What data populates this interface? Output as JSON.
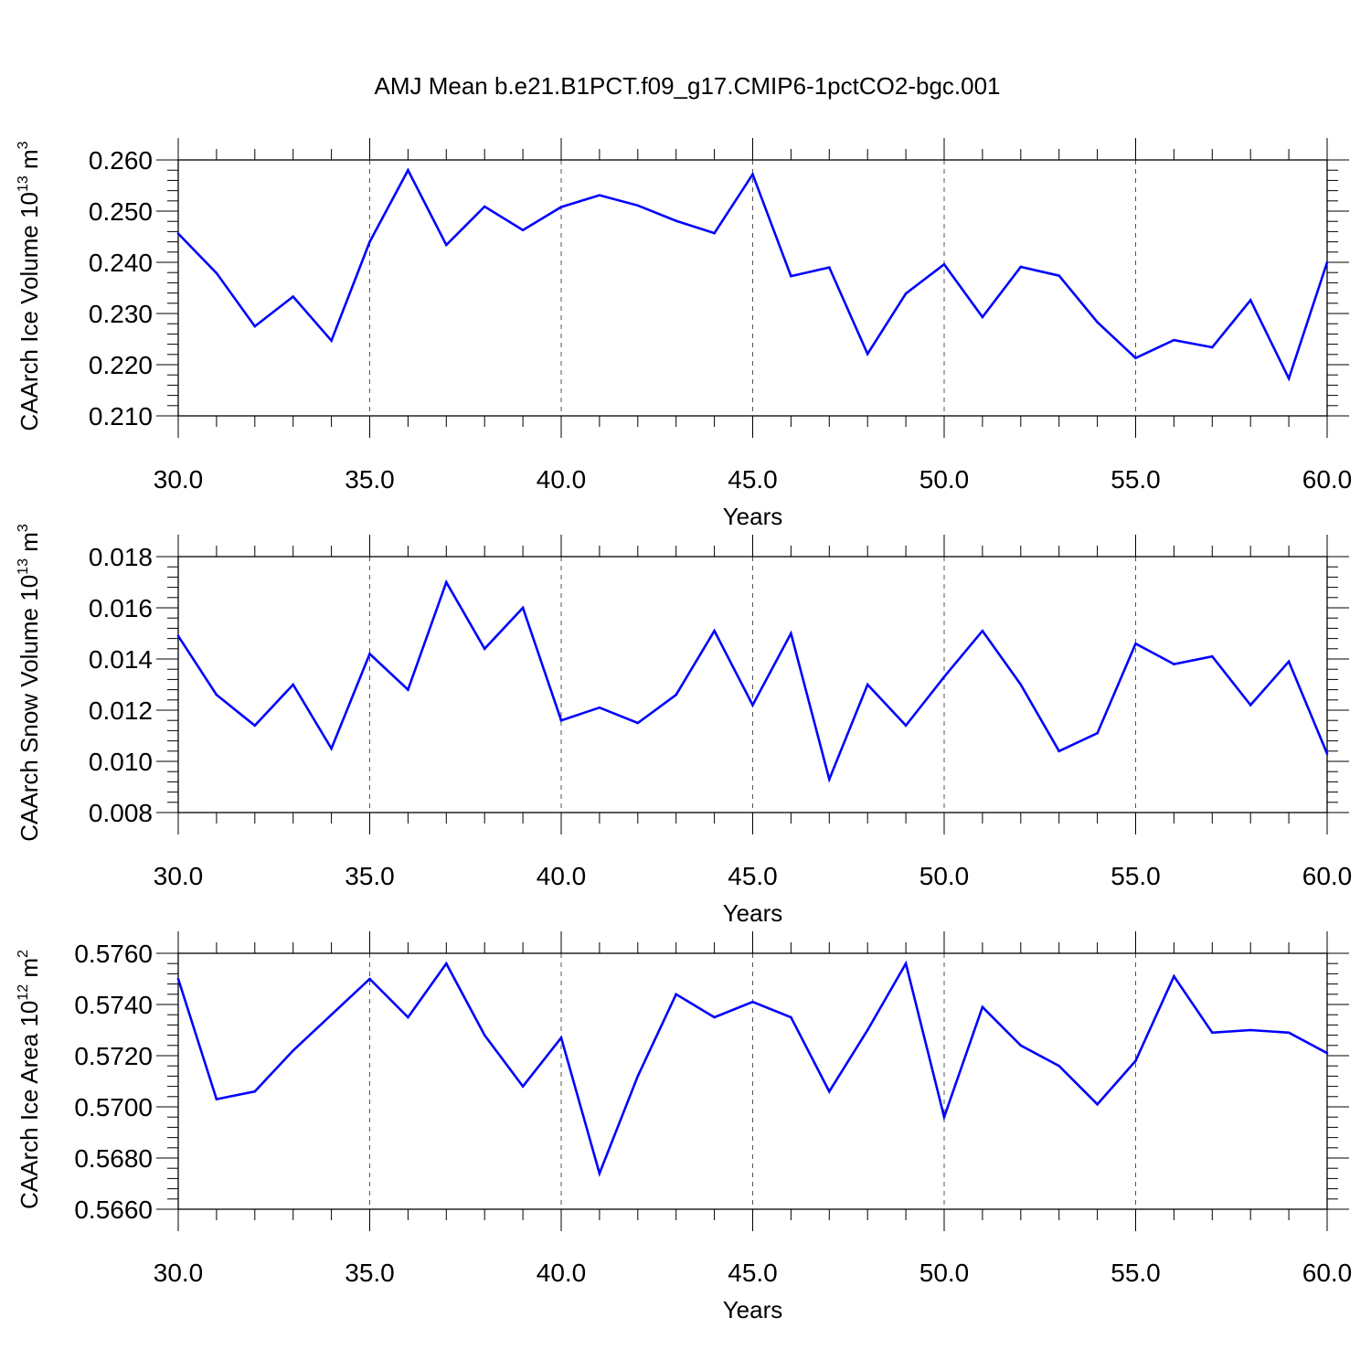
{
  "title": "AMJ Mean b.e21.B1PCT.f09_g17.CMIP6-1pctCO2-bgc.001",
  "colors": {
    "line": "#0000ff",
    "axis": "#000000",
    "grid": "#000000"
  },
  "chart_data": [
    {
      "type": "line",
      "ylabel": {
        "main": "CAArch Ice Volume 10",
        "exp": "13",
        "unit": " m",
        "unit_exp": "3"
      },
      "xlabel": "Years",
      "xlim": [
        30,
        60
      ],
      "ylim": [
        0.21,
        0.26
      ],
      "x_ticks": [
        "30.0",
        "35.0",
        "40.0",
        "45.0",
        "50.0",
        "55.0",
        "60.0"
      ],
      "y_ticks": [
        "0.210",
        "0.220",
        "0.230",
        "0.240",
        "0.250",
        "0.260"
      ],
      "grid": "x-dashed",
      "x": [
        30,
        31,
        32,
        33,
        34,
        35,
        36,
        37,
        38,
        39,
        40,
        41,
        42,
        43,
        44,
        45,
        46,
        47,
        48,
        49,
        50,
        51,
        52,
        53,
        54,
        55,
        56,
        57,
        58,
        59,
        60
      ],
      "y": [
        0.2456,
        0.2379,
        0.2275,
        0.2333,
        0.2247,
        0.244,
        0.258,
        0.2434,
        0.2509,
        0.2463,
        0.2508,
        0.2531,
        0.2511,
        0.2481,
        0.2457,
        0.2572,
        0.2373,
        0.239,
        0.2221,
        0.2339,
        0.2396,
        0.2293,
        0.2391,
        0.2374,
        0.2283,
        0.2213,
        0.2248,
        0.2234,
        0.2326,
        0.2173,
        0.24
      ]
    },
    {
      "type": "line",
      "ylabel": {
        "main": "CAArch Snow Volume 10",
        "exp": "13",
        "unit": " m",
        "unit_exp": "3"
      },
      "xlabel": "Years",
      "xlim": [
        30,
        60
      ],
      "ylim": [
        0.008,
        0.018
      ],
      "x_ticks": [
        "30.0",
        "35.0",
        "40.0",
        "45.0",
        "50.0",
        "55.0",
        "60.0"
      ],
      "y_ticks": [
        "0.008",
        "0.010",
        "0.012",
        "0.014",
        "0.016",
        "0.018"
      ],
      "grid": "x-dashed",
      "x": [
        30,
        31,
        32,
        33,
        34,
        35,
        36,
        37,
        38,
        39,
        40,
        41,
        42,
        43,
        44,
        45,
        46,
        47,
        48,
        49,
        50,
        51,
        52,
        53,
        54,
        55,
        56,
        57,
        58,
        59,
        60
      ],
      "y": [
        0.0149,
        0.0126,
        0.0114,
        0.013,
        0.0105,
        0.0142,
        0.0128,
        0.017,
        0.0144,
        0.016,
        0.0116,
        0.0121,
        0.0115,
        0.0126,
        0.0151,
        0.0122,
        0.015,
        0.0093,
        0.013,
        0.0114,
        0.0133,
        0.0151,
        0.013,
        0.0104,
        0.0111,
        0.0146,
        0.0138,
        0.0141,
        0.0122,
        0.0139,
        0.0103
      ]
    },
    {
      "type": "line",
      "ylabel": {
        "main": "CAArch Ice Area 10",
        "exp": "12",
        "unit": " m",
        "unit_exp": "2"
      },
      "xlabel": "Years",
      "xlim": [
        30,
        60
      ],
      "ylim": [
        0.566,
        0.576
      ],
      "x_ticks": [
        "30.0",
        "35.0",
        "40.0",
        "45.0",
        "50.0",
        "55.0",
        "60.0"
      ],
      "y_ticks": [
        "0.5660",
        "0.5680",
        "0.5700",
        "0.5720",
        "0.5740",
        "0.5760"
      ],
      "grid": "x-dashed",
      "x": [
        30,
        31,
        32,
        33,
        34,
        35,
        36,
        37,
        38,
        39,
        40,
        41,
        42,
        43,
        44,
        45,
        46,
        47,
        48,
        49,
        50,
        51,
        52,
        53,
        54,
        55,
        56,
        57,
        58,
        59,
        60
      ],
      "y": [
        0.575,
        0.5703,
        0.5706,
        0.5722,
        0.5736,
        0.575,
        0.5735,
        0.5756,
        0.5728,
        0.5708,
        0.5727,
        0.5674,
        0.5712,
        0.5744,
        0.5735,
        0.5741,
        0.5735,
        0.5706,
        0.573,
        0.5756,
        0.5696,
        0.5739,
        0.5724,
        0.5716,
        0.5701,
        0.5718,
        0.5751,
        0.5729,
        0.573,
        0.5729,
        0.5721
      ]
    }
  ]
}
